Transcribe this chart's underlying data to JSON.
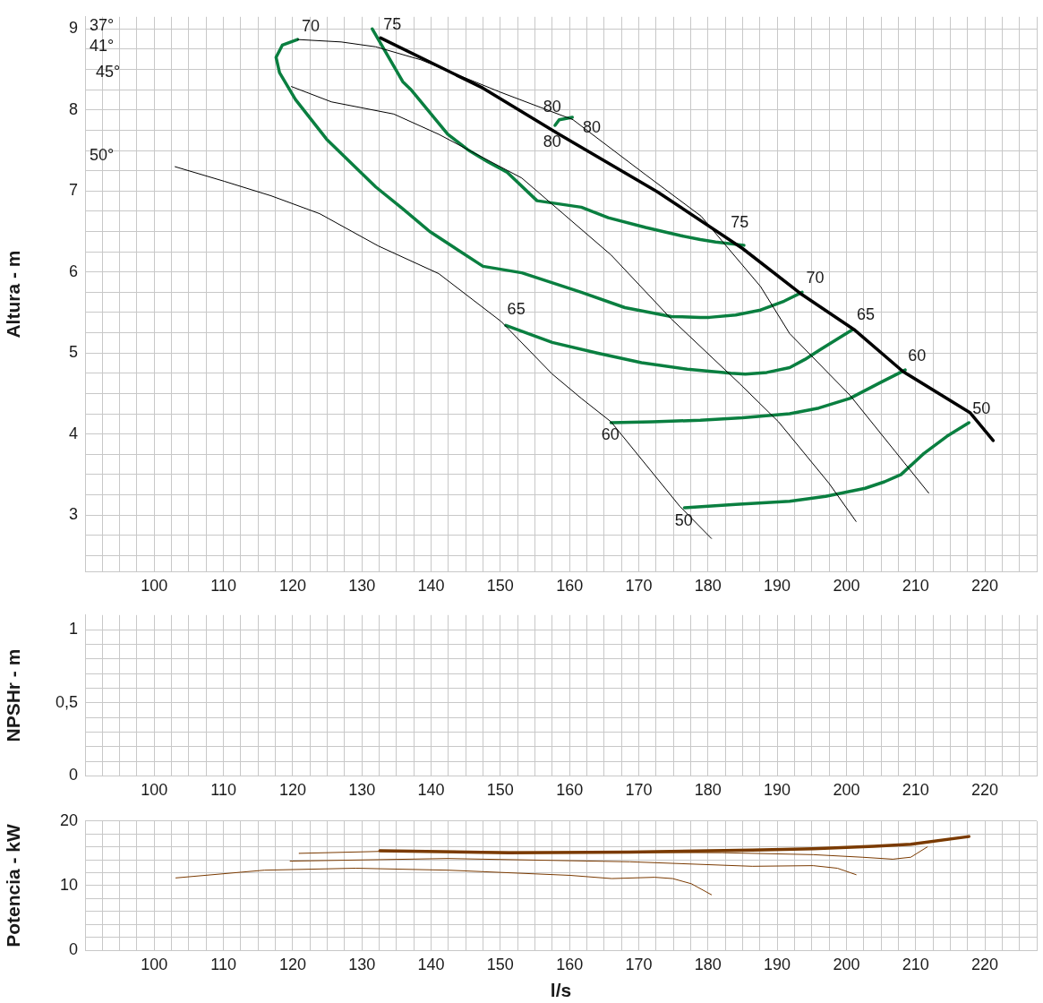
{
  "chart_data": [
    {
      "type": "line",
      "ylabel": "Altura - m",
      "xlim": [
        90,
        227.5
      ],
      "ylim": [
        2.3,
        9.15
      ],
      "grid": true,
      "xticks": [
        {
          "value": 90,
          "label": null
        },
        {
          "value": 92.5,
          "label": null
        },
        {
          "value": 95,
          "label": null
        },
        {
          "value": 97.5,
          "label": null
        },
        100,
        {
          "value": 102.5,
          "label": null
        },
        {
          "value": 105,
          "label": null
        },
        {
          "value": 107.5,
          "label": null
        },
        110,
        {
          "value": 112.5,
          "label": null
        },
        {
          "value": 115,
          "label": null
        },
        {
          "value": 117.5,
          "label": null
        },
        120,
        {
          "value": 122.5,
          "label": null
        },
        {
          "value": 125,
          "label": null
        },
        {
          "value": 127.5,
          "label": null
        },
        130,
        {
          "value": 132.5,
          "label": null
        },
        {
          "value": 135,
          "label": null
        },
        {
          "value": 137.5,
          "label": null
        },
        140,
        {
          "value": 142.5,
          "label": null
        },
        {
          "value": 145,
          "label": null
        },
        {
          "value": 147.5,
          "label": null
        },
        150,
        {
          "value": 152.5,
          "label": null
        },
        {
          "value": 155,
          "label": null
        },
        {
          "value": 157.5,
          "label": null
        },
        160,
        {
          "value": 162.5,
          "label": null
        },
        {
          "value": 165,
          "label": null
        },
        {
          "value": 167.5,
          "label": null
        },
        170,
        {
          "value": 172.5,
          "label": null
        },
        {
          "value": 175,
          "label": null
        },
        {
          "value": 177.5,
          "label": null
        },
        180,
        {
          "value": 182.5,
          "label": null
        },
        {
          "value": 185,
          "label": null
        },
        {
          "value": 187.5,
          "label": null
        },
        190,
        {
          "value": 192.5,
          "label": null
        },
        {
          "value": 195,
          "label": null
        },
        {
          "value": 197.5,
          "label": null
        },
        200,
        {
          "value": 202.5,
          "label": null
        },
        {
          "value": 205,
          "label": null
        },
        {
          "value": 207.5,
          "label": null
        },
        210,
        {
          "value": 212.5,
          "label": null
        },
        {
          "value": 215,
          "label": null
        },
        {
          "value": 217.5,
          "label": null
        },
        220,
        {
          "value": 222.5,
          "label": null
        },
        {
          "value": 225,
          "label": null
        },
        {
          "value": 227.5,
          "label": null
        }
      ],
      "yticks": [
        {
          "value": 2.5,
          "label": null
        },
        {
          "value": 2.75,
          "label": null
        },
        3,
        {
          "value": 3.25,
          "label": null
        },
        {
          "value": 3.5,
          "label": null
        },
        {
          "value": 3.75,
          "label": null
        },
        4,
        {
          "value": 4.25,
          "label": null
        },
        {
          "value": 4.5,
          "label": null
        },
        {
          "value": 4.75,
          "label": null
        },
        5,
        {
          "value": 5.25,
          "label": null
        },
        {
          "value": 5.5,
          "label": null
        },
        {
          "value": 5.75,
          "label": null
        },
        6,
        {
          "value": 6.25,
          "label": null
        },
        {
          "value": 6.5,
          "label": null
        },
        {
          "value": 6.75,
          "label": null
        },
        7,
        {
          "value": 7.25,
          "label": null
        },
        {
          "value": 7.5,
          "label": null
        },
        {
          "value": 7.75,
          "label": null
        },
        8,
        {
          "value": 8.25,
          "label": null
        },
        {
          "value": 8.5,
          "label": null
        },
        {
          "value": 8.75,
          "label": null
        },
        9
      ],
      "series": [
        {
          "color": "#000000",
          "x": [
            132.7,
            147.5,
            158.5,
            172.7,
            185,
            193.6,
            201.1,
            208.2,
            217.9,
            221.2
          ],
          "values": [
            8.89,
            8.27,
            7.7,
            6.99,
            6.29,
            5.72,
            5.29,
            4.77,
            4.26,
            3.92
          ]
        },
        {
          "color": "#000000",
          "x": [
            120.7,
            127,
            132,
            138.5,
            150,
            160.5,
            171,
            179,
            187.6,
            191.8,
            200.5,
            207,
            211.9
          ],
          "values": [
            8.87,
            8.84,
            8.78,
            8.62,
            8.22,
            7.88,
            7.2,
            6.69,
            5.82,
            5.24,
            4.48,
            3.79,
            3.27
          ]
        },
        {
          "color": "#000000",
          "x": [
            119.8,
            125.6,
            134.6,
            141.1,
            153.1,
            166,
            174.7,
            184.6,
            190.2,
            197.5,
            201.4
          ],
          "values": [
            8.29,
            8.1,
            7.95,
            7.7,
            7.16,
            6.21,
            5.42,
            4.62,
            4.15,
            3.39,
            2.92
          ]
        },
        {
          "color": "#000000",
          "x": [
            103,
            110.1,
            116.9,
            123.9,
            132.4,
            141.1,
            150.1,
            157.5,
            161.7,
            166,
            175.9,
            180.5
          ],
          "values": [
            7.3,
            7.12,
            6.94,
            6.72,
            6.32,
            5.98,
            5.39,
            4.74,
            4.44,
            4.15,
            3.11,
            2.71
          ]
        },
        {
          "color": "#0a7f40",
          "x": [
            157.9,
            158.5,
            160.4
          ],
          "values": [
            7.81,
            7.88,
            7.91
          ]
        },
        {
          "color": "#0a7f40",
          "x": [
            131.5,
            135.9,
            137.2,
            142.4,
            145.3,
            148.2,
            151,
            155.3,
            161.7,
            165.6,
            171,
            176,
            178.9,
            181.1,
            185.2
          ],
          "values": [
            9.0,
            8.35,
            8.24,
            7.7,
            7.51,
            7.36,
            7.23,
            6.88,
            6.8,
            6.67,
            6.55,
            6.45,
            6.4,
            6.37,
            6.33
          ]
        },
        {
          "color": "#0a7f40",
          "x": [
            120.7,
            118.5,
            117.6,
            118.1,
            120.4,
            124.9,
            132,
            135.9,
            139.8,
            147.5,
            153.1,
            161.7,
            168,
            174.7,
            178.9,
            180.2,
            184,
            187.6,
            191,
            193.6
          ],
          "values": [
            8.87,
            8.8,
            8.65,
            8.46,
            8.13,
            7.64,
            7.05,
            6.78,
            6.5,
            6.07,
            5.99,
            5.75,
            5.56,
            5.45,
            5.44,
            5.44,
            5.47,
            5.53,
            5.64,
            5.75
          ]
        },
        {
          "color": "#0a7f40",
          "x": [
            150.8,
            157.5,
            164,
            170.4,
            177,
            183.3,
            185.4,
            188.5,
            191.8,
            194,
            196.2,
            200.9
          ],
          "values": [
            5.34,
            5.13,
            5.0,
            4.88,
            4.8,
            4.75,
            4.74,
            4.76,
            4.82,
            4.92,
            5.04,
            5.29
          ]
        },
        {
          "color": "#0a7f40",
          "x": [
            166,
            172,
            178.9,
            185,
            191.8,
            196,
            200.5,
            204.8,
            208.5
          ],
          "values": [
            4.14,
            4.15,
            4.17,
            4.2,
            4.25,
            4.32,
            4.44,
            4.63,
            4.79
          ]
        },
        {
          "color": "#0a7f40",
          "x": [
            176.6,
            184,
            191.8,
            197,
            202.7,
            205.5,
            207.9,
            211.2,
            214.5,
            217.7
          ],
          "values": [
            3.09,
            3.13,
            3.17,
            3.23,
            3.33,
            3.41,
            3.5,
            3.76,
            3.97,
            4.14
          ]
        }
      ],
      "annotations": [
        "37°",
        "41°",
        "45°",
        "50°",
        "70",
        "75",
        "80",
        "80",
        "80",
        "75",
        "70",
        "65",
        "65",
        "60",
        "60",
        "50",
        "50"
      ]
    },
    {
      "type": "line",
      "ylabel": "NPSHr - m",
      "xlim": [
        90,
        227.5
      ],
      "ylim": [
        0,
        1.1
      ],
      "grid": true,
      "xticks": [
        {
          "value": 90,
          "label": null
        },
        {
          "value": 92.5,
          "label": null
        },
        {
          "value": 95,
          "label": null
        },
        {
          "value": 97.5,
          "label": null
        },
        100,
        {
          "value": 102.5,
          "label": null
        },
        {
          "value": 105,
          "label": null
        },
        {
          "value": 107.5,
          "label": null
        },
        110,
        {
          "value": 112.5,
          "label": null
        },
        {
          "value": 115,
          "label": null
        },
        {
          "value": 117.5,
          "label": null
        },
        120,
        {
          "value": 122.5,
          "label": null
        },
        {
          "value": 125,
          "label": null
        },
        {
          "value": 127.5,
          "label": null
        },
        130,
        {
          "value": 132.5,
          "label": null
        },
        {
          "value": 135,
          "label": null
        },
        {
          "value": 137.5,
          "label": null
        },
        140,
        {
          "value": 142.5,
          "label": null
        },
        {
          "value": 145,
          "label": null
        },
        {
          "value": 147.5,
          "label": null
        },
        150,
        {
          "value": 152.5,
          "label": null
        },
        {
          "value": 155,
          "label": null
        },
        {
          "value": 157.5,
          "label": null
        },
        160,
        {
          "value": 162.5,
          "label": null
        },
        {
          "value": 165,
          "label": null
        },
        {
          "value": 167.5,
          "label": null
        },
        170,
        {
          "value": 172.5,
          "label": null
        },
        {
          "value": 175,
          "label": null
        },
        {
          "value": 177.5,
          "label": null
        },
        180,
        {
          "value": 182.5,
          "label": null
        },
        {
          "value": 185,
          "label": null
        },
        {
          "value": 187.5,
          "label": null
        },
        190,
        {
          "value": 192.5,
          "label": null
        },
        {
          "value": 195,
          "label": null
        },
        {
          "value": 197.5,
          "label": null
        },
        200,
        {
          "value": 202.5,
          "label": null
        },
        {
          "value": 205,
          "label": null
        },
        {
          "value": 207.5,
          "label": null
        },
        210,
        {
          "value": 212.5,
          "label": null
        },
        {
          "value": 215,
          "label": null
        },
        {
          "value": 217.5,
          "label": null
        },
        220,
        {
          "value": 222.5,
          "label": null
        },
        {
          "value": 225,
          "label": null
        },
        {
          "value": 227.5,
          "label": null
        }
      ],
      "yticks": [
        0,
        {
          "value": 0.1,
          "label": null
        },
        {
          "value": 0.2,
          "label": null
        },
        {
          "value": 0.3,
          "label": null
        },
        {
          "value": 0.4,
          "label": null
        },
        {
          "value": 0.5,
          "label": "0,5"
        },
        {
          "value": 0.6,
          "label": null
        },
        {
          "value": 0.7,
          "label": null
        },
        {
          "value": 0.8,
          "label": null
        },
        {
          "value": 0.9,
          "label": null
        },
        1
      ]
    },
    {
      "type": "line",
      "ylabel": "Potencia - kW",
      "xlabel": "l/s",
      "xlim": [
        90,
        227.5
      ],
      "ylim": [
        0,
        20
      ],
      "grid": true,
      "xticks": [
        {
          "value": 90,
          "label": null
        },
        {
          "value": 92.5,
          "label": null
        },
        {
          "value": 95,
          "label": null
        },
        {
          "value": 97.5,
          "label": null
        },
        100,
        {
          "value": 102.5,
          "label": null
        },
        {
          "value": 105,
          "label": null
        },
        {
          "value": 107.5,
          "label": null
        },
        110,
        {
          "value": 112.5,
          "label": null
        },
        {
          "value": 115,
          "label": null
        },
        {
          "value": 117.5,
          "label": null
        },
        120,
        {
          "value": 122.5,
          "label": null
        },
        {
          "value": 125,
          "label": null
        },
        {
          "value": 127.5,
          "label": null
        },
        130,
        {
          "value": 132.5,
          "label": null
        },
        {
          "value": 135,
          "label": null
        },
        {
          "value": 137.5,
          "label": null
        },
        140,
        {
          "value": 142.5,
          "label": null
        },
        {
          "value": 145,
          "label": null
        },
        {
          "value": 147.5,
          "label": null
        },
        150,
        {
          "value": 152.5,
          "label": null
        },
        {
          "value": 155,
          "label": null
        },
        {
          "value": 157.5,
          "label": null
        },
        160,
        {
          "value": 162.5,
          "label": null
        },
        {
          "value": 165,
          "label": null
        },
        {
          "value": 167.5,
          "label": null
        },
        170,
        {
          "value": 172.5,
          "label": null
        },
        {
          "value": 175,
          "label": null
        },
        {
          "value": 177.5,
          "label": null
        },
        180,
        {
          "value": 182.5,
          "label": null
        },
        {
          "value": 185,
          "label": null
        },
        {
          "value": 187.5,
          "label": null
        },
        190,
        {
          "value": 192.5,
          "label": null
        },
        {
          "value": 195,
          "label": null
        },
        {
          "value": 197.5,
          "label": null
        },
        200,
        {
          "value": 202.5,
          "label": null
        },
        {
          "value": 205,
          "label": null
        },
        {
          "value": 207.5,
          "label": null
        },
        210,
        {
          "value": 212.5,
          "label": null
        },
        {
          "value": 215,
          "label": null
        },
        {
          "value": 217.5,
          "label": null
        },
        220,
        {
          "value": 222.5,
          "label": null
        },
        {
          "value": 225,
          "label": null
        },
        {
          "value": 227.5,
          "label": null
        }
      ],
      "yticks": [
        0,
        {
          "value": 2,
          "label": null
        },
        {
          "value": 4,
          "label": null
        },
        {
          "value": 6,
          "label": null
        },
        {
          "value": 8,
          "label": null
        },
        10,
        {
          "value": 12,
          "label": null
        },
        {
          "value": 14,
          "label": null
        },
        {
          "value": 16,
          "label": null
        },
        {
          "value": 18,
          "label": null
        },
        20
      ],
      "series": [
        {
          "color": "#7a3a00",
          "x": [
            132.6,
            151.2,
            168.7,
            186.4,
            195.2,
            204,
            209.3,
            217.7
          ],
          "values": [
            15.4,
            15.1,
            15.2,
            15.5,
            15.7,
            16.1,
            16.4,
            17.6
          ]
        },
        {
          "color": "#7a3a00",
          "x": [
            120.9,
            132.6,
            182,
            195.2,
            202.3,
            206.7,
            209.3,
            211.7
          ],
          "values": [
            15.0,
            15.3,
            15.1,
            14.8,
            14.4,
            14.1,
            14.4,
            16.0
          ]
        },
        {
          "color": "#7a3a00",
          "x": [
            119.6,
            142.4,
            168.7,
            186.4,
            195.2,
            198.7,
            201.4
          ],
          "values": [
            13.8,
            14.2,
            13.7,
            13.0,
            13.1,
            12.7,
            11.7
          ]
        },
        {
          "color": "#7a3a00",
          "x": [
            103.1,
            115.9,
            129.1,
            142.4,
            160,
            166.1,
            172.3,
            174.9,
            177.6,
            180.5
          ],
          "values": [
            11.2,
            12.4,
            12.7,
            12.4,
            11.6,
            11.1,
            11.3,
            11.1,
            10.3,
            8.6
          ]
        }
      ]
    }
  ]
}
